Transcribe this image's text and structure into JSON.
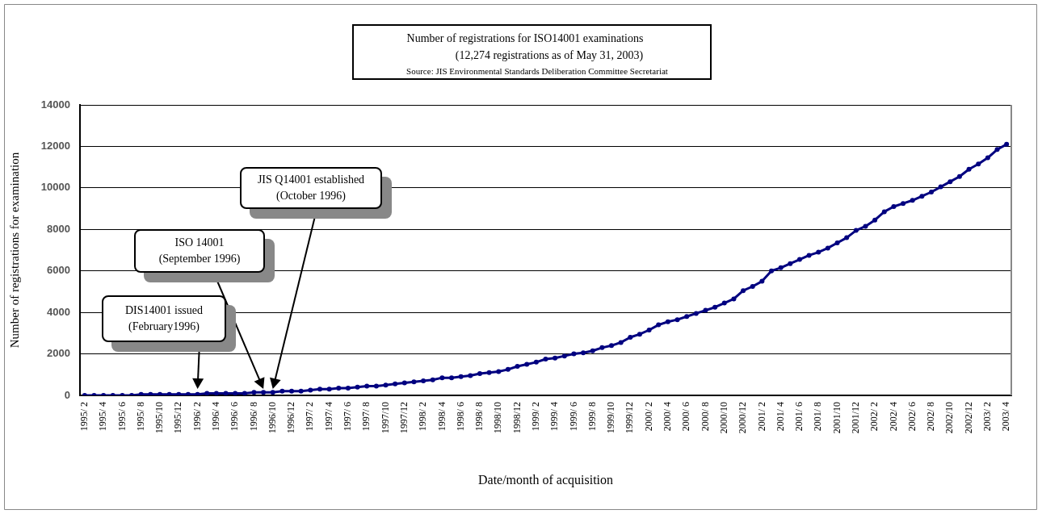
{
  "chart_data": {
    "type": "line",
    "title": "Number of registrations for ISO14001 examinations",
    "subtitle": "(12,274 registrations as of May 31, 2003)",
    "xlabel": "Date/month of acquisition",
    "ylabel": "Number of registrations for examination",
    "categories": [
      "1995/ 2",
      null,
      "1995/ 4",
      null,
      "1995/ 6",
      null,
      "1995/ 8",
      null,
      "1995/10",
      null,
      "1995/12",
      null,
      "1996/ 2",
      null,
      "1996/ 4",
      null,
      "1996/ 6",
      null,
      "1996/ 8",
      null,
      "1996/10",
      null,
      "1996/12",
      null,
      "1997/ 2",
      null,
      "1997/ 4",
      null,
      "1997/ 6",
      null,
      "1997/ 8",
      null,
      "1997/10",
      null,
      "1997/12",
      null,
      "1998/ 2",
      null,
      "1998/ 4",
      null,
      "1998/ 6",
      null,
      "1998/ 8",
      null,
      "1998/10",
      null,
      "1998/12",
      null,
      "1999/ 2",
      null,
      "1999/ 4",
      null,
      "1999/ 6",
      null,
      "1999/ 8",
      null,
      "1999/10",
      null,
      "1999/12",
      null,
      "2000/ 2",
      null,
      "2000/ 4",
      null,
      "2000/ 6",
      null,
      "2000/ 8",
      null,
      "2000/10",
      null,
      "2000/12",
      null,
      "2001/ 2",
      null,
      "2001/ 4",
      null,
      "2001/ 6",
      null,
      "2001/ 8",
      null,
      "2001/10",
      null,
      "2001/12",
      null,
      "2002/ 2",
      null,
      "2002/ 4",
      null,
      "2002/ 6",
      null,
      "2002/ 8",
      null,
      "2002/10",
      null,
      "2002/12",
      null,
      "2003/ 2",
      null,
      "2003/ 4"
    ],
    "series": [
      {
        "color": "#000080",
        "values": [
          0,
          0,
          0,
          0,
          0,
          0,
          50,
          50,
          50,
          50,
          50,
          50,
          50,
          100,
          100,
          100,
          100,
          100,
          150,
          150,
          150,
          200,
          200,
          200,
          250,
          300,
          300,
          350,
          350,
          400,
          450,
          450,
          500,
          550,
          600,
          650,
          700,
          750,
          850,
          850,
          900,
          950,
          1050,
          1100,
          1150,
          1250,
          1400,
          1500,
          1600,
          1750,
          1800,
          1900,
          2000,
          2050,
          2150,
          2300,
          2400,
          2550,
          2800,
          2950,
          3150,
          3400,
          3550,
          3650,
          3800,
          3950,
          4100,
          4250,
          4450,
          4650,
          5050,
          5250,
          5500,
          6000,
          6150,
          6350,
          6550,
          6750,
          6900,
          7100,
          7350,
          7600,
          7950,
          8150,
          8450,
          8850,
          9100,
          9250,
          9400,
          9600,
          9800,
          10050,
          10300,
          10550,
          10900,
          11150,
          11450,
          11850,
          12100
        ]
      }
    ],
    "ylim": [
      0,
      14000
    ],
    "yticks": [
      0,
      2000,
      4000,
      6000,
      8000,
      10000,
      12000,
      14000
    ],
    "grid": "y",
    "legend": false,
    "marker": "circle",
    "line_style": "solid",
    "annotations": [
      "Source: JIS Environmental Standards Deliberation Committee Secretariat",
      "DIS14001 issued\n(February1996)",
      "ISO 14001\n(September 1996)",
      "JIS Q14001 established\n(October 1996)"
    ]
  }
}
